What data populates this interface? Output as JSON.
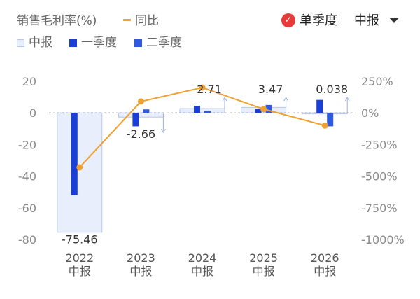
{
  "legend": {
    "metric_label": "销售毛利率(%)",
    "yoy_label": "同比",
    "h1_label": "中报",
    "q1_label": "一季度",
    "q2_label": "二季度"
  },
  "controls": {
    "single_quarter_label": "单季度",
    "period_select_value": "中报"
  },
  "colors": {
    "h1_fill": "#e8eefc",
    "h1_stroke": "#b7c6ea",
    "q1": "#1a3fd6",
    "q2": "#2f5ae0",
    "yoy_line": "#f0a030",
    "check_badge": "#e83a3a"
  },
  "chart_data": {
    "type": "bar",
    "categories": [
      {
        "year": "2022",
        "period": "中报"
      },
      {
        "year": "2023",
        "period": "中报"
      },
      {
        "year": "2024",
        "period": "中报"
      },
      {
        "year": "2025",
        "period": "中报"
      },
      {
        "year": "2026",
        "period": "中报"
      }
    ],
    "left_axis": {
      "ticks": [
        "20",
        "0",
        "-20",
        "-40",
        "-60",
        "-80"
      ],
      "range": [
        -80,
        20
      ]
    },
    "right_axis": {
      "ticks": [
        "250%",
        "0%",
        "-250%",
        "-500%",
        "-750%",
        "-1000%"
      ],
      "range": [
        -1000,
        250
      ]
    },
    "series": [
      {
        "name": "中报",
        "values": [
          -75.46,
          -2.66,
          2.71,
          3.47,
          0.038
        ],
        "data_labels": [
          "-75.46",
          "-2.66",
          "2.71",
          "3.47",
          "0.038"
        ]
      },
      {
        "name": "一季度",
        "values": [
          -52,
          -8.5,
          4.5,
          2.5,
          8.2
        ]
      },
      {
        "name": "二季度",
        "values": [
          null,
          2.2,
          1.2,
          5.0,
          -8.5
        ]
      },
      {
        "name": "同比",
        "axis": "right",
        "values": [
          -430,
          90,
          200,
          30,
          -100
        ]
      }
    ],
    "grid": false,
    "zero_line": "dashed"
  }
}
